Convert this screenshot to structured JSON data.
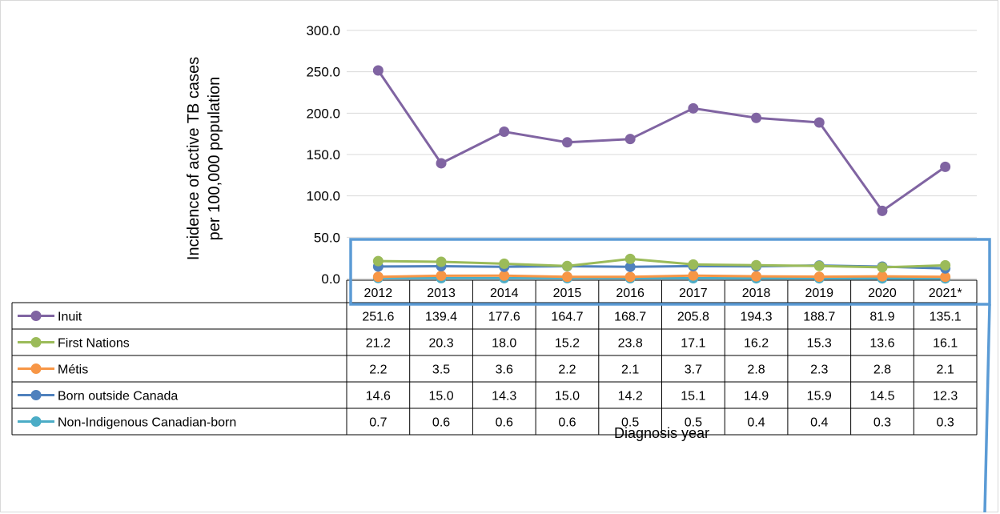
{
  "chart_data": {
    "type": "line",
    "title": "",
    "ylabel_lines": [
      "Incidence of active TB cases",
      "per 100,000 population"
    ],
    "xlabel": "Diagnosis year",
    "ylim": [
      0,
      300
    ],
    "yticks": [
      "0.0",
      "50.0",
      "100.0",
      "150.0",
      "200.0",
      "250.0",
      "300.0"
    ],
    "ytick_values": [
      0,
      50,
      100,
      150,
      200,
      250,
      300
    ],
    "grid": true,
    "legend": "data-table",
    "categories": [
      "2012",
      "2013",
      "2014",
      "2015",
      "2016",
      "2017",
      "2018",
      "2019",
      "2020",
      "2021*"
    ],
    "series": [
      {
        "name": "Inuit",
        "color": "#8064a2",
        "values": [
          251.6,
          139.4,
          177.6,
          164.7,
          168.7,
          205.8,
          194.3,
          188.7,
          81.9,
          135.1
        ],
        "labels": [
          "251.6",
          "139.4",
          "177.6",
          "164.7",
          "168.7",
          "205.8",
          "194.3",
          "188.7",
          "81.9",
          "135.1"
        ]
      },
      {
        "name": "First Nations",
        "color": "#9bbb59",
        "values": [
          21.2,
          20.3,
          18.0,
          15.2,
          23.8,
          17.1,
          16.2,
          15.3,
          13.6,
          16.1
        ],
        "labels": [
          "21.2",
          "20.3",
          "18.0",
          "15.2",
          "23.8",
          "17.1",
          "16.2",
          "15.3",
          "13.6",
          "16.1"
        ]
      },
      {
        "name": "Métis",
        "color": "#f79646",
        "values": [
          2.2,
          3.5,
          3.6,
          2.2,
          2.1,
          3.7,
          2.8,
          2.3,
          2.8,
          2.1
        ],
        "labels": [
          "2.2",
          "3.5",
          "3.6",
          "2.2",
          "2.1",
          "3.7",
          "2.8",
          "2.3",
          "2.8",
          "2.1"
        ]
      },
      {
        "name": "Born outside Canada",
        "color": "#4f81bd",
        "values": [
          14.6,
          15.0,
          14.3,
          15.0,
          14.2,
          15.1,
          14.9,
          15.9,
          14.5,
          12.3
        ],
        "labels": [
          "14.6",
          "15.0",
          "14.3",
          "15.0",
          "14.2",
          "15.1",
          "14.9",
          "15.9",
          "14.5",
          "12.3"
        ]
      },
      {
        "name": "Non-Indigenous Canadian-born",
        "color": "#4bacc6",
        "values": [
          0.7,
          0.6,
          0.6,
          0.6,
          0.5,
          0.5,
          0.4,
          0.4,
          0.3,
          0.3
        ],
        "labels": [
          "0.7",
          "0.6",
          "0.6",
          "0.6",
          "0.5",
          "0.5",
          "0.4",
          "0.4",
          "0.3",
          "0.3"
        ]
      }
    ],
    "highlight_color": "#5b9bd5"
  }
}
